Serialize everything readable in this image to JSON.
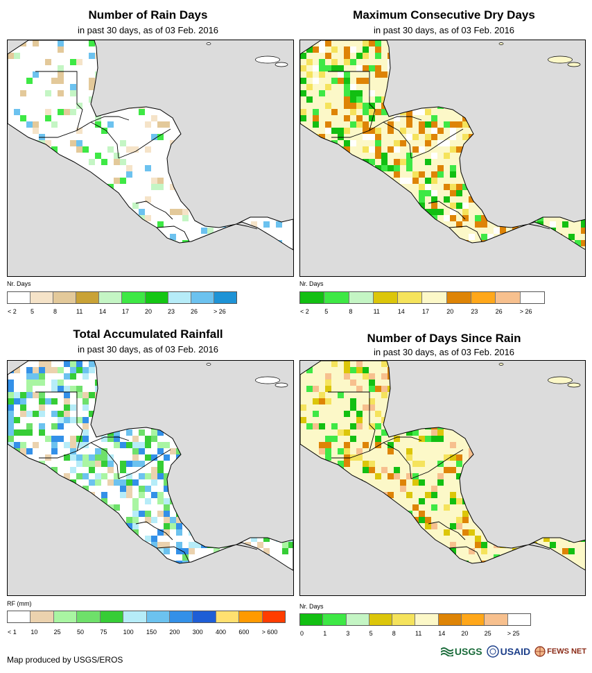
{
  "panels": [
    {
      "id": "rain-days",
      "title": "Number of Rain Days",
      "subtitle": "in past 30 days, as of 03 Feb. 2016",
      "legend_unit": "Nr. Days",
      "legend_colors": [
        "#ffffff",
        "#f5e3c8",
        "#e3c99a",
        "#c9a236",
        "#c4f5c4",
        "#3ee845",
        "#14c614",
        "#b6ecf8",
        "#6cc2ef",
        "#1e93d6"
      ],
      "legend_ticks": [
        "< 2",
        "5",
        "8",
        "11",
        "14",
        "17",
        "20",
        "23",
        "26",
        "> 26"
      ],
      "map_style": "rain-days"
    },
    {
      "id": "dry-days",
      "title": "Maximum Consecutive Dry Days",
      "subtitle": "in past 30 days, as of 03 Feb. 2016",
      "legend_unit": "Nr. Days",
      "legend_colors": [
        "#12bf12",
        "#3ee845",
        "#c4f5c4",
        "#dcc60a",
        "#f5e35c",
        "#fcf8c8",
        "#de8406",
        "#ffa71a",
        "#f7c08e",
        "#ffffff"
      ],
      "legend_ticks": [
        "< 2",
        "5",
        "8",
        "11",
        "14",
        "17",
        "20",
        "23",
        "26",
        "> 26"
      ],
      "map_style": "dry-days"
    },
    {
      "id": "rainfall",
      "title": "Total Accumulated Rainfall",
      "subtitle": "in past 30 days, as of 03 Feb. 2016",
      "legend_unit": "RF (mm)",
      "legend_colors": [
        "#ffffff",
        "#ebd2ae",
        "#a9f5a2",
        "#6ee06a",
        "#36cd36",
        "#b6ecf8",
        "#6cc2ef",
        "#3390e8",
        "#1e5ed6",
        "#ffe070",
        "#ff9a00",
        "#ff3d00"
      ],
      "legend_ticks": [
        "< 1",
        "10",
        "25",
        "50",
        "75",
        "100",
        "150",
        "200",
        "300",
        "400",
        "600",
        "> 600"
      ],
      "map_style": "rainfall"
    },
    {
      "id": "since-rain",
      "title": "Number of Days Since Rain",
      "subtitle": "in past 30 days, as of 03 Feb. 2016",
      "legend_unit": "Nr. Days",
      "legend_colors": [
        "#12bf12",
        "#3ee845",
        "#c4f5c4",
        "#dcc60a",
        "#f5e35c",
        "#fcf8c8",
        "#de8406",
        "#ffa71a",
        "#f7c08e",
        "#ffffff"
      ],
      "legend_ticks": [
        "0",
        "1",
        "3",
        "5",
        "8",
        "11",
        "14",
        "20",
        "25",
        "> 25"
      ],
      "map_style": "since-rain"
    }
  ],
  "footer": {
    "credit": "Map produced by USGS/EROS"
  },
  "logos": {
    "usgs": "USGS",
    "usaid": "USAID",
    "fewsnet": "FEWS NET",
    "colors": {
      "usgs": "#1a6b3a",
      "usaid": "#1d3f8a",
      "fewsnet": "#8a2a16"
    }
  }
}
